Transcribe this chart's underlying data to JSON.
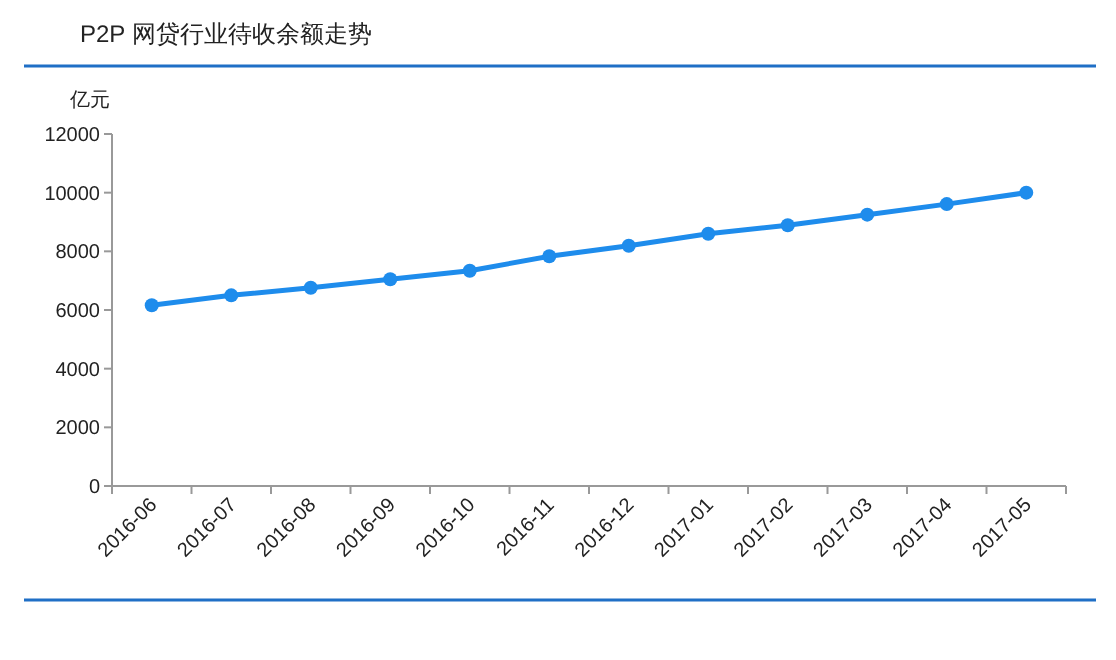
{
  "chart_data": {
    "type": "line",
    "title": "P2P 网贷行业待收余额走势",
    "ylabel": "亿元",
    "categories": [
      "2016-06",
      "2016-07",
      "2016-08",
      "2016-09",
      "2016-10",
      "2016-11",
      "2016-12",
      "2017-01",
      "2017-02",
      "2017-03",
      "2017-04",
      "2017-05"
    ],
    "series": [
      {
        "color": "#1e8cec",
        "values": [
          6160,
          6500,
          6760,
          7050,
          7340,
          7830,
          8190,
          8600,
          8890,
          9250,
          9610,
          10000
        ]
      }
    ],
    "ylim": [
      0,
      12000
    ],
    "yticks": [
      0,
      2000,
      4000,
      6000,
      8000,
      10000,
      12000
    ],
    "marker": "circle",
    "line_style": "solid",
    "grid": false
  }
}
